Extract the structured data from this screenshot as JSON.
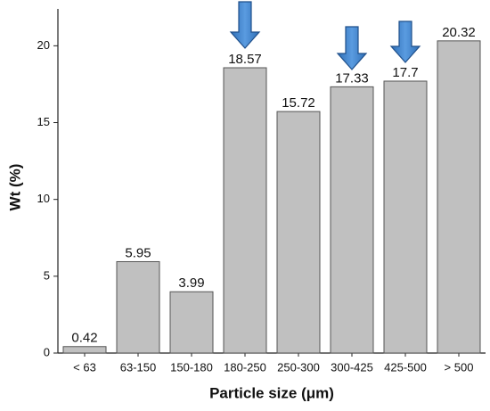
{
  "chart_data": {
    "type": "bar",
    "x_label": "Particle size (μm)",
    "y_label": "Wt (%)",
    "categories": [
      "< 63",
      "63-150",
      "150-180",
      "180-250",
      "250-300",
      "300-425",
      "425-500",
      "> 500"
    ],
    "values": [
      0.42,
      5.95,
      3.99,
      18.57,
      15.72,
      17.33,
      17.7,
      20.32
    ],
    "color": "#c0c0c0",
    "ylim": [
      0,
      22.4
    ],
    "yticks": [
      0,
      5,
      10,
      15,
      20
    ],
    "grid": false
  }
}
